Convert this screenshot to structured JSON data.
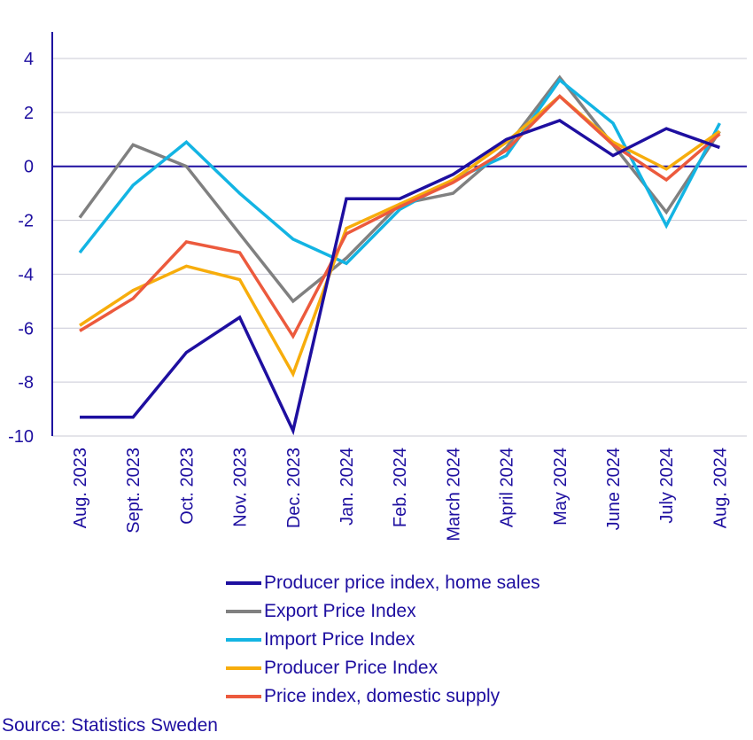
{
  "chart_data": {
    "type": "line",
    "title": "",
    "xlabel": "",
    "ylabel": "",
    "ylim": [
      -10,
      5
    ],
    "yticks": [
      4,
      2,
      0,
      -2,
      -4,
      -6,
      -8,
      -10
    ],
    "grid": true,
    "legend_position": "bottom",
    "categories": [
      "Aug. 2023",
      "Sept. 2023",
      "Oct. 2023",
      "Nov. 2023",
      "Dec. 2023",
      "Jan. 2024",
      "Feb. 2024",
      "March 2024",
      "April 2024",
      "May 2024",
      "June 2024",
      "July 2024",
      "Aug. 2024"
    ],
    "series": [
      {
        "name": "Export Price Index",
        "color": "#808080",
        "values": [
          -1.9,
          0.8,
          0.0,
          -2.5,
          -5.0,
          -3.4,
          -1.4,
          -1.0,
          0.7,
          3.3,
          0.8,
          -1.7,
          1.3
        ]
      },
      {
        "name": "Import Price Index",
        "color": "#13b4e3",
        "values": [
          -3.2,
          -0.7,
          0.9,
          -1.0,
          -2.7,
          -3.6,
          -1.6,
          -0.5,
          0.4,
          3.2,
          1.6,
          -2.2,
          1.6
        ]
      },
      {
        "name": "Producer Price Index",
        "color": "#f7ad0c",
        "values": [
          -5.9,
          -4.6,
          -3.7,
          -4.2,
          -7.7,
          -2.3,
          -1.4,
          -0.5,
          0.9,
          2.6,
          0.9,
          -0.1,
          1.3
        ]
      },
      {
        "name": "Price index, domestic supply",
        "color": "#ec5a3d",
        "values": [
          -6.1,
          -4.9,
          -2.8,
          -3.2,
          -6.3,
          -2.5,
          -1.5,
          -0.6,
          0.6,
          2.6,
          0.8,
          -0.5,
          1.2
        ]
      },
      {
        "name": "Producer price index, home sales",
        "color": "#1e0fa0",
        "values": [
          -9.3,
          -9.3,
          -6.9,
          -5.6,
          -9.8,
          -1.2,
          -1.2,
          -0.3,
          1.0,
          1.7,
          0.4,
          1.4,
          0.7
        ]
      }
    ],
    "legend_order": [
      4,
      0,
      1,
      2,
      3
    ]
  },
  "source": "Source: Statistics Sweden"
}
